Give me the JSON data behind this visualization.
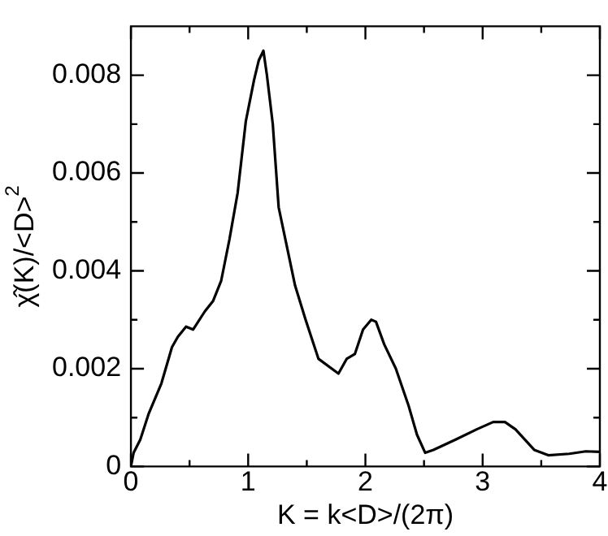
{
  "chart_data": {
    "type": "line",
    "xlabel": "K = k<D>/(2π)",
    "ylabel": "χ̂(K)/<D>$^{2}$",
    "x": [
      0,
      0.023,
      0.08,
      0.15,
      0.26,
      0.35,
      0.4,
      0.47,
      0.53,
      0.63,
      0.7,
      0.77,
      0.84,
      0.91,
      0.98,
      1.05,
      1.09,
      1.13,
      1.16,
      1.21,
      1.26,
      1.33,
      1.4,
      1.49,
      1.6,
      1.77,
      1.84,
      1.91,
      1.98,
      2.05,
      2.09,
      2.16,
      2.26,
      2.37,
      2.44,
      2.51,
      2.58,
      2.77,
      2.95,
      3.09,
      3.19,
      3.28,
      3.44,
      3.56,
      3.74,
      3.88,
      4.0
    ],
    "series": [
      {
        "color": "#000000",
        "values": [
          0,
          0.00028,
          0.00055,
          0.00107,
          0.0017,
          0.00244,
          0.00265,
          0.00286,
          0.0028,
          0.00317,
          0.00338,
          0.0038,
          0.00464,
          0.00559,
          0.00706,
          0.0079,
          0.0083,
          0.0085,
          0.008,
          0.007,
          0.0053,
          0.0045,
          0.0037,
          0.003,
          0.0022,
          0.0019,
          0.0022,
          0.0023,
          0.0028,
          0.003,
          0.00296,
          0.0025,
          0.002,
          0.00123,
          0.00065,
          0.00028,
          0.00034,
          0.00055,
          0.00076,
          0.00091,
          0.00091,
          0.00076,
          0.00034,
          0.00023,
          0.00026,
          0.00031,
          0.0003
        ]
      }
    ],
    "xlim": [
      0,
      4
    ],
    "ylim": [
      0,
      0.009
    ],
    "xticks": [
      0,
      {
        "value": 0.5,
        "label": null
      },
      1,
      {
        "value": 1.5,
        "label": null
      },
      2,
      {
        "value": 2.5,
        "label": null
      },
      3,
      {
        "value": 3.5,
        "label": null
      },
      4
    ],
    "yticks": [
      0,
      {
        "value": 0.001,
        "label": null
      },
      0.002,
      {
        "value": 0.003,
        "label": null
      },
      0.004,
      {
        "value": 0.005,
        "label": null
      },
      0.006,
      {
        "value": 0.007,
        "label": null
      },
      0.008
    ],
    "grid": false,
    "legend": false,
    "marker": "none",
    "line_style": "solid"
  }
}
